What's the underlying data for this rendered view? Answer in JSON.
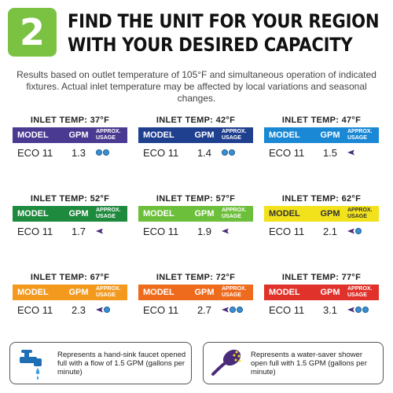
{
  "header": {
    "step_number": "2",
    "headline_line1": "FIND THE UNIT FOR YOUR REGION",
    "headline_line2": "WITH YOUR DESIRED CAPACITY",
    "subtext": "Results based on outlet temperature of 105°F and simultaneous operation of indicated fixtures. Actual inlet temperature may be affected by local variations and seasonal changes.",
    "badge_color": "#7cc242"
  },
  "table_headers": {
    "model": "MODEL",
    "gpm": "GPM",
    "usage_line1": "APPROX.",
    "usage_line2": "USAGE"
  },
  "cards": [
    {
      "title": "INLET TEMP: 37°F",
      "color": "#4a3a92",
      "model": "ECO 11",
      "gpm": "1.3",
      "icons": [
        "faucet",
        "faucet"
      ]
    },
    {
      "title": "INLET TEMP: 42°F",
      "color": "#1f3f8f",
      "model": "ECO 11",
      "gpm": "1.4",
      "icons": [
        "faucet",
        "faucet"
      ]
    },
    {
      "title": "INLET TEMP: 47°F",
      "color": "#1a88d4",
      "model": "ECO 11",
      "gpm": "1.5",
      "icons": [
        "shower"
      ]
    },
    {
      "title": "INLET TEMP: 52°F",
      "color": "#1e8a3e",
      "model": "ECO 11",
      "gpm": "1.7",
      "icons": [
        "shower"
      ]
    },
    {
      "title": "INLET TEMP: 57°F",
      "color": "#6cbf3a",
      "model": "ECO 11",
      "gpm": "1.9",
      "icons": [
        "shower"
      ]
    },
    {
      "title": "INLET TEMP: 62°F",
      "color": "#f2e21c",
      "model": "ECO 11",
      "gpm": "2.1",
      "icons": [
        "shower",
        "faucet"
      ]
    },
    {
      "title": "INLET TEMP: 67°F",
      "color": "#f39a1e",
      "model": "ECO 11",
      "gpm": "2.3",
      "icons": [
        "shower",
        "faucet"
      ]
    },
    {
      "title": "INLET TEMP: 72°F",
      "color": "#ee6b1d",
      "model": "ECO 11",
      "gpm": "2.7",
      "icons": [
        "shower",
        "faucet",
        "faucet"
      ]
    },
    {
      "title": "INLET TEMP: 77°F",
      "color": "#e0312a",
      "model": "ECO 11",
      "gpm": "3.1",
      "icons": [
        "shower",
        "faucet",
        "faucet"
      ]
    }
  ],
  "legend": {
    "faucet_text": "Represents a hand-sink faucet opened full with a flow of 1.5 GPM (gallons per minute)",
    "shower_text": "Represents a water-saver shower open full with 1.5 GPM (gallons per minute)",
    "faucet_icon": "faucet-icon",
    "shower_icon": "shower-head-icon"
  }
}
